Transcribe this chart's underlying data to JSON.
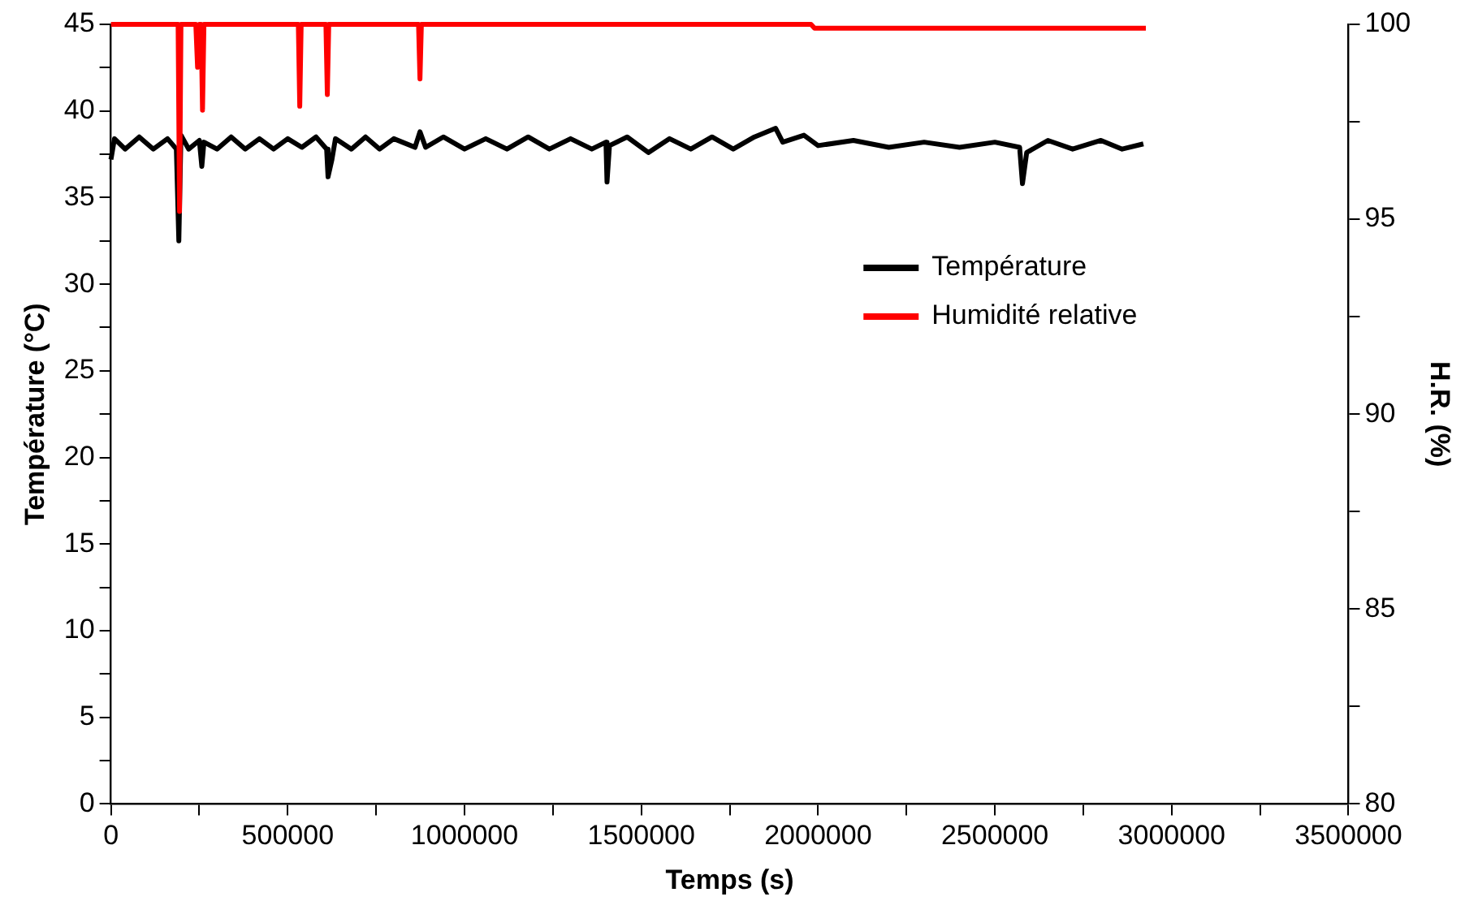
{
  "chart_data": {
    "type": "line",
    "xlabel": "Temps (s)",
    "ylabel": "Température (°C)",
    "y2label": "H.R. (%)",
    "xlim": [
      0,
      3500000
    ],
    "xticks": [
      0,
      {
        "value": 250000,
        "label": null
      },
      500000,
      {
        "value": 750000,
        "label": null
      },
      1000000,
      {
        "value": 1250000,
        "label": null
      },
      1500000,
      {
        "value": 1750000,
        "label": null
      },
      2000000,
      {
        "value": 2250000,
        "label": null
      },
      2500000,
      {
        "value": 2750000,
        "label": null
      },
      3000000,
      {
        "value": 3250000,
        "label": null
      },
      3500000
    ],
    "ylim": [
      0,
      45
    ],
    "yticks": [
      0,
      {
        "value": 2.5,
        "label": null
      },
      5,
      {
        "value": 7.5,
        "label": null
      },
      10,
      {
        "value": 12.5,
        "label": null
      },
      15,
      {
        "value": 17.5,
        "label": null
      },
      20,
      {
        "value": 22.5,
        "label": null
      },
      25,
      {
        "value": 27.5,
        "label": null
      },
      30,
      {
        "value": 32.5,
        "label": null
      },
      35,
      {
        "value": 37.5,
        "label": null
      },
      40,
      {
        "value": 42.5,
        "label": null
      },
      45
    ],
    "y2lim": [
      80,
      100
    ],
    "y2ticks": [
      80,
      {
        "value": 82.5,
        "label": null
      },
      85,
      {
        "value": 87.5,
        "label": null
      },
      90,
      {
        "value": 92.5,
        "label": null
      },
      95,
      {
        "value": 97.5,
        "label": null
      },
      100
    ],
    "legend": "top right",
    "marker": "none",
    "line_style": "solid",
    "series": [
      {
        "name": "Température",
        "color": "#000000",
        "x": [
          0,
          10000,
          40000,
          80000,
          120000,
          160000,
          185000,
          192000,
          198000,
          220000,
          250000,
          257000,
          263000,
          300000,
          340000,
          380000,
          420000,
          460000,
          500000,
          540000,
          580000,
          610000,
          614000,
          625000,
          635000,
          680000,
          720000,
          760000,
          800000,
          860000,
          874000,
          890000,
          940000,
          1000000,
          1060000,
          1120000,
          1180000,
          1240000,
          1300000,
          1360000,
          1400000,
          1403000,
          1410000,
          1460000,
          1520000,
          1580000,
          1640000,
          1700000,
          1760000,
          1820000,
          1880000,
          1900000,
          1960000,
          2000000,
          2100000,
          2200000,
          2300000,
          2400000,
          2500000,
          2570000,
          2578000,
          2590000,
          2650000,
          2720000,
          2800000,
          2860000,
          2920000
        ],
        "values": [
          37.2,
          38.4,
          37.8,
          38.5,
          37.8,
          38.4,
          37.8,
          32.5,
          38.6,
          37.8,
          38.3,
          36.8,
          38.2,
          37.8,
          38.5,
          37.8,
          38.4,
          37.8,
          38.4,
          37.9,
          38.5,
          37.8,
          36.2,
          37.2,
          38.4,
          37.8,
          38.5,
          37.8,
          38.4,
          37.9,
          38.8,
          37.9,
          38.5,
          37.8,
          38.4,
          37.8,
          38.5,
          37.8,
          38.4,
          37.8,
          38.2,
          35.9,
          38.0,
          38.5,
          37.6,
          38.4,
          37.8,
          38.5,
          37.8,
          38.5,
          39.0,
          38.2,
          38.6,
          38.0,
          38.3,
          37.9,
          38.2,
          37.9,
          38.2,
          37.9,
          35.8,
          37.6,
          38.3,
          37.8,
          38.3,
          37.8,
          38.1
        ]
      },
      {
        "name": "Humidité relative",
        "color": "#ff0000",
        "axis": "y2",
        "x": [
          0,
          190000,
          194000,
          198000,
          240000,
          245000,
          250000,
          255000,
          259000,
          263000,
          530000,
          534000,
          538000,
          608000,
          612000,
          616000,
          870000,
          874000,
          878000,
          1980000,
          1990000,
          2927000
        ],
        "values": [
          100,
          100,
          95.2,
          100,
          100,
          98.9,
          100,
          100,
          97.8,
          100,
          100,
          97.9,
          100,
          100,
          98.2,
          100,
          100,
          98.6,
          100,
          100,
          99.9,
          99.9
        ]
      }
    ]
  }
}
